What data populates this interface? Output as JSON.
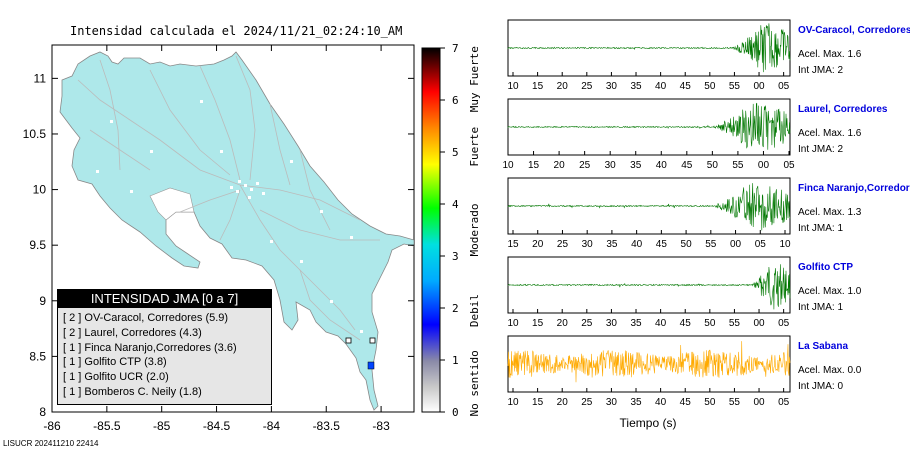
{
  "map": {
    "title_prefix": "Intensidad calculada el",
    "title_datetime": "2024/11/21_02:24:10_AM",
    "x_ticks": [
      "-86",
      "-85.5",
      "-85",
      "-84.5",
      "-84",
      "-83.5",
      "-83"
    ],
    "y_ticks": [
      "11",
      "10.5",
      "10",
      "9.5",
      "9",
      "8.5",
      "8"
    ],
    "x_range": [
      -86,
      -82.7
    ],
    "y_range": [
      8,
      11.3
    ],
    "land_color": "#aee8ea",
    "footer": "LISUCR 202411210 22414"
  },
  "colorbar": {
    "ticks": [
      "0",
      "1",
      "2",
      "3",
      "4",
      "5",
      "6",
      "7"
    ],
    "range": [
      0,
      7
    ],
    "labels": [
      "No sentido",
      "Debil",
      "Moderado",
      "Fuerte",
      "Muy Fuerte"
    ],
    "colors": [
      "#ffffff",
      "#9a9aa6",
      "#0000ff",
      "#00bfff",
      "#00ff00",
      "#ffff00",
      "#ff6600",
      "#ff0000",
      "#000000"
    ]
  },
  "legend": {
    "header": "INTENSIDAD JMA [0 a 7]",
    "items": [
      "[ 2 ]  OV-Caracol, Corredores (5.9)",
      "[ 2 ]  Laurel, Corredores (4.3)",
      "[ 1 ]  Finca Naranjo,Corredores (3.6)",
      "[ 1 ]  Golfito CTP (3.8)",
      "[ 1 ]  Golfito UCR (2.0)",
      "[ 1 ]  Bomberos C. Neily (1.8)"
    ]
  },
  "traces": [
    {
      "name": "OV-Caracol, Corredores",
      "acel": "Acel. Max. 1.6",
      "int": "Int JMA: 2",
      "color": "#007700",
      "onset": 0.79,
      "ticks": [
        "10",
        "15",
        "20",
        "25",
        "30",
        "35",
        "40",
        "45",
        "50",
        "55",
        "00",
        "05"
      ]
    },
    {
      "name": "Laurel, Corredores",
      "acel": "Acel. Max. 1.6",
      "int": "Int JMA: 2",
      "color": "#007700",
      "onset": 0.72,
      "ticks": [
        "10",
        "15",
        "20",
        "25",
        "30",
        "35",
        "40",
        "45",
        "50",
        "55",
        "00",
        "05"
      ]
    },
    {
      "name": "Finca Naranjo,Corredores",
      "acel": "Acel. Max. 1.3",
      "int": "Int JMA: 1",
      "color": "#007700",
      "onset": 0.72,
      "ticks": [
        "15",
        "20",
        "25",
        "30",
        "35",
        "40",
        "45",
        "50",
        "55",
        "00",
        "05",
        "10"
      ]
    },
    {
      "name": "Golfito CTP",
      "acel": "Acel. Max. 1.0",
      "int": "Int JMA: 1",
      "color": "#007700",
      "onset": 0.86,
      "ticks": [
        "10",
        "15",
        "20",
        "25",
        "30",
        "35",
        "40",
        "45",
        "50",
        "55",
        "00",
        "05"
      ]
    },
    {
      "name": "La Sabana",
      "acel": "Acel. Max. 0.0",
      "int": "Int JMA: 0",
      "color": "#ffaa00",
      "onset": -1,
      "ticks": [
        "10",
        "15",
        "20",
        "25",
        "30",
        "35",
        "40",
        "45",
        "50",
        "55",
        "00",
        "05"
      ]
    }
  ],
  "time_label": "Tiempo (s)"
}
